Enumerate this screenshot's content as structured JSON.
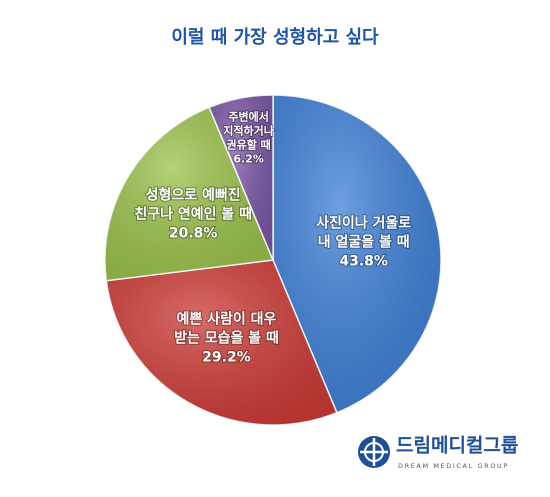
{
  "chart_data": {
    "type": "pie",
    "title": "이럴 때 가장 성형하고 싶다",
    "categories": [
      [
        "사진이나 거울로",
        "내 얼굴을 볼 때"
      ],
      [
        "예쁜 사람이 대우",
        "받는 모습을 볼 때"
      ],
      [
        "성형으로 예뻐진",
        "친구나 연예인 볼 때"
      ],
      [
        "주변에서",
        "지적하거나",
        "권유할 때"
      ]
    ],
    "values": [
      43.8,
      29.2,
      20.8,
      6.2
    ],
    "value_labels": [
      "43.8%",
      "29.2%",
      "20.8%",
      "6.2%"
    ],
    "colors": [
      "#3d7fd7",
      "#cd3a35",
      "#9cc24b",
      "#7b56a6"
    ]
  },
  "logo": {
    "name": "드림메디컬그룹",
    "subtitle": "DREAM MEDICAL GROUP"
  }
}
